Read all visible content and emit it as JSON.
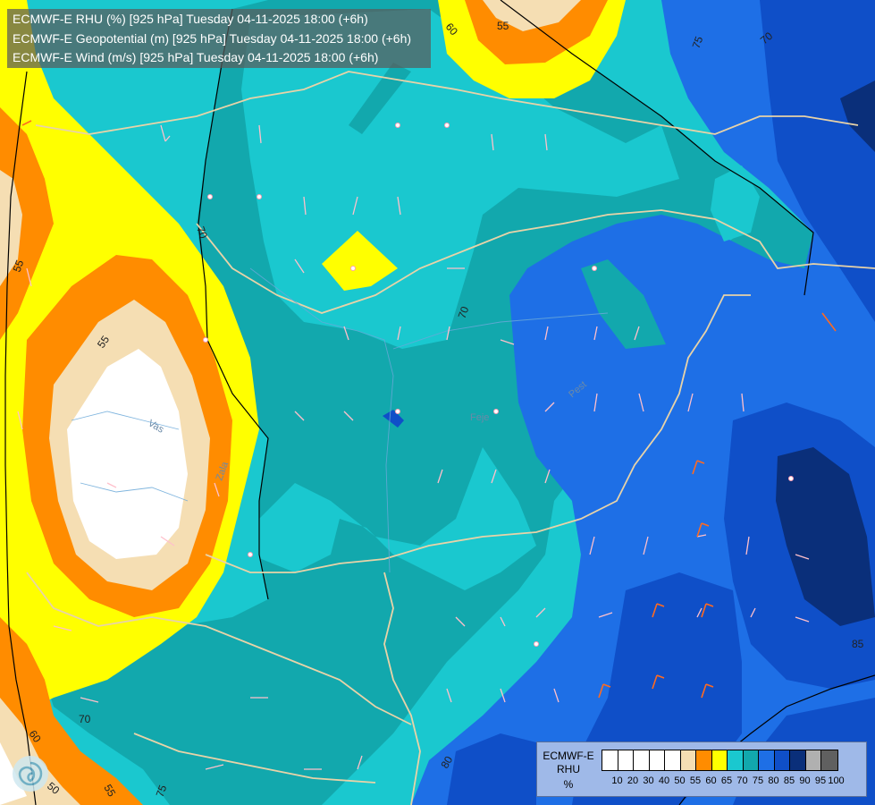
{
  "header": {
    "lines": [
      "ECMWF-E RHU (%) [925 hPa] Tuesday 04-11-2025 18:00 (+6h)",
      "ECMWF-E Geopotential (m) [925 hPa] Tuesday 04-11-2025 18:00 (+6h)",
      "ECMWF-E Wind (m/s) [925 hPa] Tuesday 04-11-2025 18:00 (+6h)"
    ]
  },
  "map_labels": {
    "contour_55_top": "55",
    "contour_60_top": "60",
    "contour_75_top": "75",
    "contour_70_top": "70",
    "contour_55_left": "55",
    "contour_55_center": "55",
    "contour_70_left": "70",
    "contour_70_center": "70",
    "contour_70_bottom": "70",
    "contour_60_bottom": "60",
    "contour_50_bottom": "50",
    "contour_55_bottom": "55",
    "contour_75_bottom": "75",
    "contour_85_right": "85",
    "contour_80_bottom": "80",
    "place_vas": "Vas",
    "place_zala": "Zala",
    "place_feje": "Feje",
    "place_pest": "Pest"
  },
  "legend": {
    "title_line1": "ECMWF-E",
    "title_line2": "RHU",
    "unit": "%",
    "ticks": [
      "10",
      "20",
      "30",
      "40",
      "50",
      "55",
      "60",
      "65",
      "70",
      "75",
      "80",
      "85",
      "90",
      "95",
      "100"
    ],
    "colors": [
      "#ffffff",
      "#ffffff",
      "#ffffff",
      "#ffffff",
      "#ffffff",
      "#f5deb3",
      "#ff8c00",
      "#ffff00",
      "#1ac8cf",
      "#12a8ad",
      "#1e6fe6",
      "#0f4fc8",
      "#0a2f7a",
      "#b0b0b0",
      "#606060"
    ]
  },
  "palette": {
    "white": "#ffffff",
    "wheat": "#f5deb3",
    "orange": "#ff8c00",
    "yellow": "#ffff00",
    "cyan": "#1ac8cf",
    "teal": "#12a8ad",
    "blue": "#1e6fe6",
    "darkblue": "#0f4fc8",
    "navy": "#0a2f7a"
  }
}
